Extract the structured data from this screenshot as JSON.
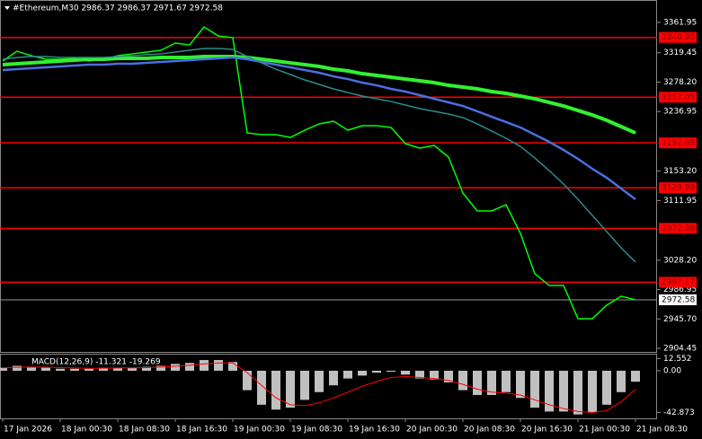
{
  "chart_data": [
    {
      "type": "line",
      "title": "#Ethereum,M30  2986.37 2986.37 2971.67 2972.58",
      "categories": [
        "17 Jan 2026",
        null,
        null,
        null,
        "18 Jan 00:30",
        null,
        null,
        null,
        "18 Jan 08:30",
        null,
        null,
        null,
        "18 Jan 16:30",
        null,
        null,
        null,
        "19 Jan 00:30",
        null,
        null,
        null,
        "19 Jan 08:30",
        null,
        null,
        null,
        "19 Jan 16:30",
        null,
        null,
        null,
        "20 Jan 00:30",
        null,
        null,
        null,
        "20 Jan 08:30",
        null,
        null,
        null,
        "20 Jan 16:30",
        null,
        null,
        null,
        "21 Jan 00:30",
        null,
        null,
        null,
        "21 Jan 08:30"
      ],
      "series": [
        {
          "color": "#00ff00",
          "width": 1.5,
          "values": [
            3307.8,
            3321.6,
            3315.3,
            3310.3,
            3310.3,
            3311.5,
            3307.8,
            3310.3,
            3315.3,
            3317.8,
            3320.4,
            3322.9,
            3333,
            3330.4,
            3355.7,
            3343,
            3340.5,
            3206.9,
            3204.4,
            3204.4,
            3200.6,
            3210.7,
            3219.5,
            3223.3,
            3210.7,
            3217,
            3217,
            3214.5,
            3191.8,
            3185.5,
            3189.3,
            3172.9,
            3122.5,
            3097.3,
            3097.3,
            3106.1,
            3065.8,
            3009.1,
            2992.7,
            2992.7,
            2946.1,
            2946.1,
            2965,
            2977.6,
            2972.6
          ]
        },
        {
          "color": "#32f032",
          "width": 4,
          "values": [
            3302.7,
            3304,
            3305.2,
            3306.5,
            3307.8,
            3309,
            3310.3,
            3310.3,
            3311.5,
            3311.5,
            3311.5,
            3312.8,
            3312.8,
            3312.8,
            3314.1,
            3314.1,
            3314.1,
            3312.8,
            3310.3,
            3307.8,
            3305.2,
            3302.7,
            3300.2,
            3296.4,
            3293.9,
            3290.1,
            3287.6,
            3285.1,
            3282.5,
            3280,
            3277.5,
            3273.7,
            3271.2,
            3268.7,
            3264.9,
            3262.4,
            3258.6,
            3254.8,
            3249.8,
            3244.7,
            3238.4,
            3232.1,
            3224.6,
            3215.8,
            3206.9
          ]
        },
        {
          "color": "#4a6fe0",
          "width": 2.5,
          "values": [
            3295.2,
            3296.4,
            3297.7,
            3299,
            3300.2,
            3301.5,
            3302.7,
            3302.7,
            3304,
            3304,
            3305.2,
            3306.5,
            3307.8,
            3309,
            3310.3,
            3311.5,
            3312.8,
            3310.3,
            3306.5,
            3302.7,
            3299,
            3295.2,
            3291.4,
            3286.3,
            3282.5,
            3277.5,
            3273.7,
            3268.7,
            3264.9,
            3259.9,
            3254.8,
            3249.8,
            3244.7,
            3237.2,
            3229.6,
            3222.1,
            3214.5,
            3204.5,
            3194.3,
            3183,
            3170.4,
            3156.5,
            3144,
            3128.8,
            3113.7
          ]
        },
        {
          "color": "#2e8b8b",
          "width": 1.5,
          "values": [
            3310.3,
            3312.8,
            3314.1,
            3314.1,
            3312.8,
            3312.8,
            3312.8,
            3312.8,
            3314.1,
            3315.3,
            3316.6,
            3317.8,
            3320.4,
            3322.9,
            3325.4,
            3325.4,
            3324.1,
            3314.1,
            3305.2,
            3296.4,
            3288.9,
            3281.3,
            3275,
            3268.7,
            3263.6,
            3258.6,
            3254.8,
            3251,
            3246,
            3241,
            3237.2,
            3233.4,
            3228.4,
            3219.5,
            3209.5,
            3199.4,
            3188,
            3171.7,
            3154,
            3135.1,
            3113.7,
            3091,
            3068.3,
            3045.6,
            3025.5
          ]
        }
      ],
      "ylim": [
        2899.4,
        3393.5
      ],
      "yticks": [
        3361.95,
        3319.45,
        {
          "value": 3278.2,
          "label": "3278.20"
        },
        3236.95,
        {
          "value": 3153.2,
          "label": "3153.20"
        },
        3111.95,
        {
          "value": 3028.2,
          "label": "3028.20"
        },
        2986.95,
        {
          "value": 2945.7,
          "label": "2945.70"
        },
        2904.45
      ],
      "levels": [
        3340.95,
        3257.05,
        3192.89,
        3129.89,
        3072.89,
        2997.17
      ],
      "level_color": "#ff0000",
      "last_price": 2972.58
    },
    {
      "type": "bar",
      "title": "MACD(12,26,9) -11.321 -19.269",
      "series": [
        {
          "type": "bar",
          "color": "#c0c0c0",
          "values": [
            3,
            5,
            4,
            3,
            2,
            2,
            2,
            3,
            3,
            3,
            4,
            5,
            7,
            8,
            11,
            11,
            9,
            -20,
            -35,
            -40,
            -38,
            -30,
            -22,
            -15,
            -8,
            -5,
            -2,
            -1,
            -4,
            -8,
            -9,
            -12,
            -20,
            -25,
            -25,
            -22,
            -28,
            -38,
            -42,
            -42,
            -45,
            -43,
            -35,
            -22,
            -11.321
          ]
        },
        {
          "type": "line",
          "color": "#ff0000",
          "width": 1,
          "values": [
            3,
            3.5,
            3.8,
            3.6,
            3.2,
            2.8,
            2.5,
            2.6,
            2.8,
            2.9,
            3.2,
            3.8,
            4.6,
            5.6,
            7,
            8,
            8,
            -2,
            -15,
            -28,
            -35,
            -36,
            -33,
            -28,
            -22,
            -16,
            -11,
            -7,
            -6,
            -7,
            -8,
            -10,
            -14,
            -19,
            -22,
            -23,
            -25,
            -30,
            -35,
            -39,
            -42,
            -43,
            -41,
            -32,
            -19.269
          ]
        }
      ],
      "ylim": [
        -49,
        17.5
      ],
      "yticks": [
        12.552,
        {
          "value": 0,
          "label": "0.00"
        },
        -42.873
      ]
    }
  ]
}
